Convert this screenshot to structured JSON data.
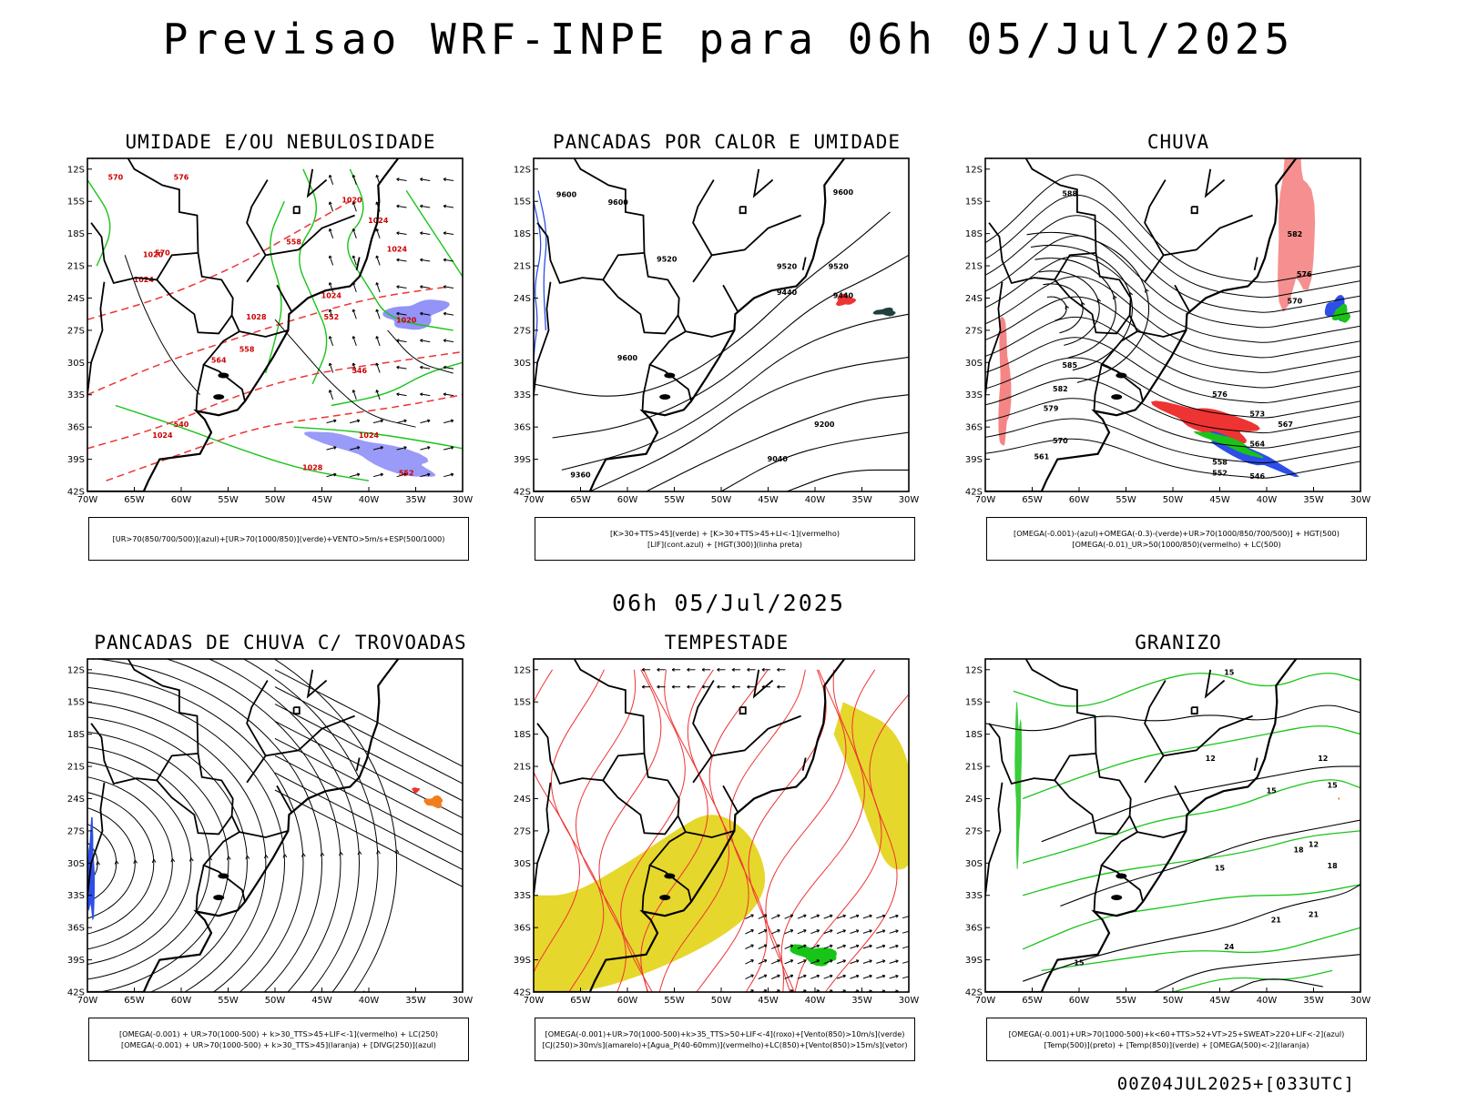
{
  "header": {
    "title": "Previsao WRF-INPE  para 06h 05/Jul/2025",
    "mid_caption": "06h 05/Jul/2025",
    "run_info": "00Z04JUL2025+[033UTC]"
  },
  "map_axes": {
    "lat_labels": [
      "12S",
      "15S",
      "18S",
      "21S",
      "24S",
      "27S",
      "30S",
      "33S",
      "36S",
      "39S",
      "42S"
    ],
    "lon_labels": [
      "70W",
      "65W",
      "60W",
      "55W",
      "50W",
      "45W",
      "40W",
      "35W",
      "30W"
    ]
  },
  "colors": {
    "rh_mid_blue": "#6f6ff5",
    "rh_low_green": "#19c419",
    "hgt_red": "#ee3333",
    "instability_yellow": "#e6d72c",
    "convergence_orange": "#f07d1e",
    "lif_blue": "#2d4fe8"
  },
  "panels": [
    {
      "id": "umidade",
      "title": "UMIDADE E/OU NEBULOSIDADE",
      "caption_lines": [
        "[UR>70(850/700/500)](azul)+[UR>70(1000/850)](verde)+VENTO>5m/s+ESP(500/1000)"
      ],
      "contour_labels": [
        "1020",
        "1024",
        "1020",
        "1024",
        "1028",
        "1024",
        "1028",
        "1024",
        "1020",
        "1024",
        "570",
        "570",
        "576",
        "558",
        "564",
        "552",
        "546",
        "540",
        "558",
        "552",
        "1024"
      ]
    },
    {
      "id": "pancadas_calor",
      "title": "PANCADAS POR CALOR E UMIDADE",
      "caption_lines": [
        "[K>30+TTS>45](verde) + [K>30+TTS>45+LI<-1](vermelho)",
        "[LIF](cont.azul) + [HGT(300)](linha preta)"
      ],
      "contour_labels": [
        "9600",
        "9600",
        "9600",
        "9520",
        "9520",
        "9440",
        "9600",
        "9520",
        "9440",
        "9360",
        "9200",
        "9040"
      ]
    },
    {
      "id": "chuva",
      "title": "CHUVA",
      "caption_lines": [
        "[OMEGA(-0.001)-(azul)+OMEGA(-0.3)-(verde)+UR>70(1000/850/700/500)] + HGT(500)",
        "[OMEGA(-0.01)_UR>50(1000/850)(vermelho) + LC(500)"
      ],
      "contour_labels": [
        "588",
        "582",
        "576",
        "570",
        "585",
        "582",
        "579",
        "576",
        "573",
        "570",
        "567",
        "564",
        "561",
        "558",
        "552",
        "546"
      ]
    },
    {
      "id": "trovoadas",
      "title": "PANCADAS DE CHUVA C/ TROVOADAS",
      "caption_lines": [
        "[OMEGA(-0.001) + UR>70(1000-500) + k>30_TTS>45+LIF<-1](vermelho) + LC(250)",
        "[OMEGA(-0.001) + UR>70(1000-500) + k>30_TTS>45](laranja) + [DIVG(250)](azul)"
      ],
      "contour_labels": []
    },
    {
      "id": "tempestade",
      "title": "TEMPESTADE",
      "caption_lines": [
        "[OMEGA(-0.001)+UR>70(1000-500)+k>35_TTS>50+LIF<-4](roxo)+[Vento(850)>10m/s](verde)",
        "[CJ(250)>30m/s](amarelo)+[Agua_P(40-60mm)](vermelho)+LC(850)+[Vento(850)>15m/s](vetor)"
      ],
      "contour_labels": []
    },
    {
      "id": "granizo",
      "title": "GRANIZO",
      "caption_lines": [
        "[OMEGA(-0.001)+UR>70(1000-500)+k<60+TTS>52+VT>25+SWEAT>220+LIF<-2](azul)",
        "[Temp(500)](preto) + [Temp(850)](verde) + [OMEGA(500)<-2](laranja)"
      ],
      "contour_labels": [
        "15",
        "12",
        "12",
        "15",
        "15",
        "18",
        "12",
        "18",
        "15",
        "21",
        "21",
        "24",
        "15"
      ]
    }
  ],
  "chart_data": [
    {
      "type": "map",
      "title": "UMIDADE E/OU NEBULOSIDADE",
      "lat_range": [
        "42S",
        "12S"
      ],
      "lon_range": [
        "70W",
        "30W"
      ],
      "fields": [
        "UR>70 (850/700/500) blue",
        "UR>70 (1000/850) green",
        "wind vectors >5 m/s",
        "thickness 500/1000 dashed red",
        "MSLP black"
      ],
      "isobars_hPa": [
        1020,
        1024,
        1028
      ],
      "thickness_dam": [
        540,
        546,
        552,
        558,
        564,
        570,
        576
      ]
    },
    {
      "type": "map",
      "title": "PANCADAS POR CALOR E UMIDADE",
      "lat_range": [
        "42S",
        "12S"
      ],
      "lon_range": [
        "70W",
        "30W"
      ],
      "fields": [
        "K>30+TTS>45 green",
        "K>30+TTS>45+LI<-1 red",
        "LIF blue contours",
        "HGT(300) black lines"
      ],
      "hgt300_m": [
        9040,
        9200,
        9360,
        9440,
        9520,
        9600
      ]
    },
    {
      "type": "map",
      "title": "CHUVA",
      "lat_range": [
        "42S",
        "12S"
      ],
      "lon_range": [
        "70W",
        "30W"
      ],
      "fields": [
        "OMEGA blue",
        "OMEGA green",
        "OMEGA/UR red",
        "HGT(500) black",
        "streamlines 500"
      ],
      "hgt500_dam": [
        546,
        552,
        558,
        561,
        564,
        567,
        570,
        573,
        576,
        579,
        582,
        585,
        588
      ]
    },
    {
      "type": "map",
      "title": "PANCADAS DE CHUVA C/ TROVOADAS",
      "lat_range": [
        "42S",
        "12S"
      ],
      "lon_range": [
        "70W",
        "30W"
      ],
      "fields": [
        "streamlines 250",
        "orange convective area near 24S 35W",
        "blue divergence near 30S 70W"
      ]
    },
    {
      "type": "map",
      "title": "TEMPESTADE",
      "lat_range": [
        "42S",
        "12S"
      ],
      "lon_range": [
        "70W",
        "30W"
      ],
      "fields": [
        "jet >30 m/s yellow",
        "precipitable water red contours",
        "wind 850 >10 m/s green",
        "vectors >15 m/s"
      ]
    },
    {
      "type": "map",
      "title": "GRANIZO",
      "lat_range": [
        "42S",
        "12S"
      ],
      "lon_range": [
        "70W",
        "30W"
      ],
      "fields": [
        "Temp(500) black",
        "Temp(850) green",
        "OMEGA(500)<-2 orange"
      ],
      "temp_labels": [
        12,
        15,
        18,
        21,
        24
      ]
    }
  ]
}
